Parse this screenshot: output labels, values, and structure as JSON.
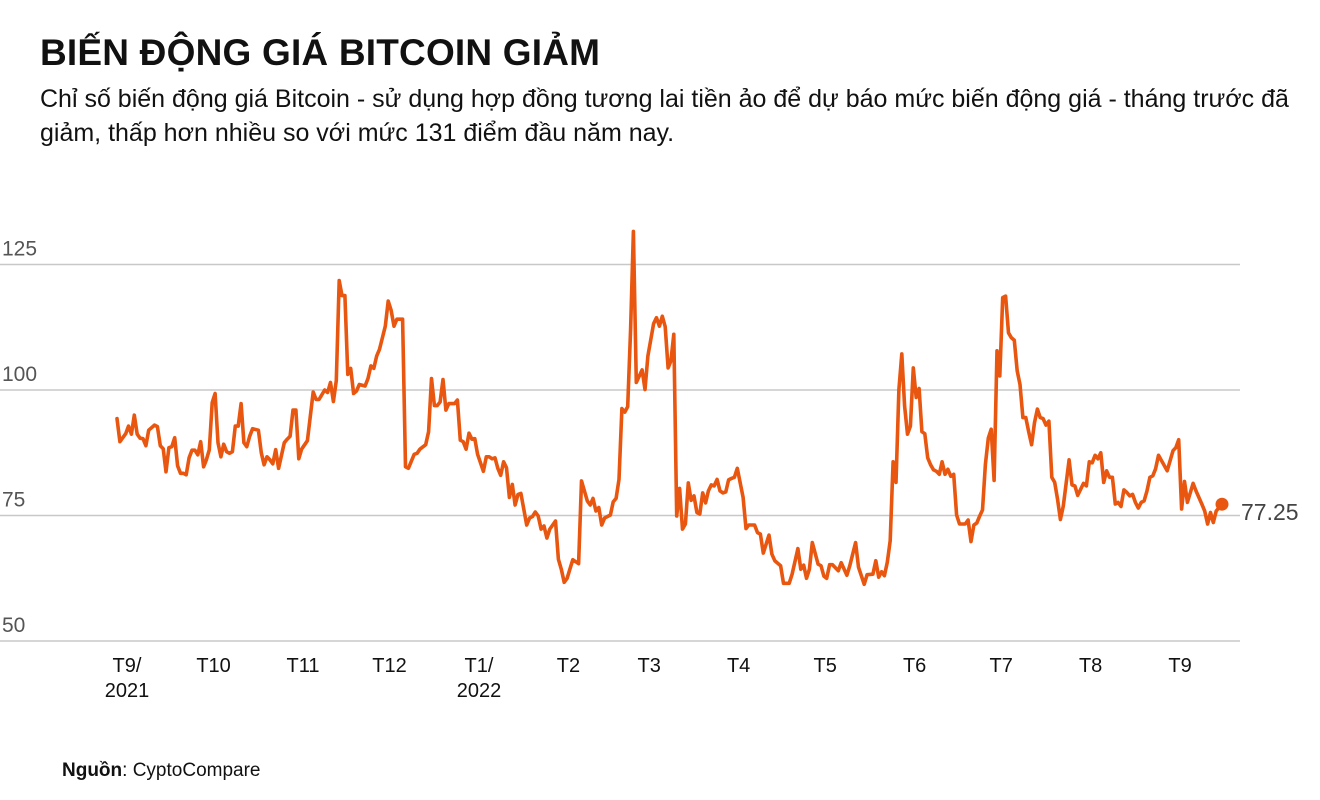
{
  "header": {
    "title": "BIẾN ĐỘNG GIÁ BITCOIN GIẢM",
    "subtitle": "Chỉ số biến động giá Bitcoin - sử dụng hợp đồng tương lai tiền ảo để dự báo mức biến động giá - tháng trước đã giảm, thấp hơn nhiều so với mức 131 điểm đầu năm nay."
  },
  "source": {
    "label": "Nguồn",
    "text": ": CyptoCompare"
  },
  "chart_data": {
    "type": "line",
    "title": "",
    "xlabel": "",
    "ylabel": "",
    "ylim": [
      50,
      131
    ],
    "yticks": [
      50,
      75,
      100,
      125
    ],
    "xlim": [
      "2021-09-01",
      "2022-09-19"
    ],
    "grid": "horizontal",
    "line_color": "#e8560f",
    "gridline_color": "#c8c8c8",
    "xticks": [
      {
        "date": "2021-09-01",
        "label": [
          "T9/",
          "2021"
        ]
      },
      {
        "date": "2021-10-01",
        "label": [
          "T10"
        ]
      },
      {
        "date": "2021-11-01",
        "label": [
          "T11"
        ]
      },
      {
        "date": "2021-12-01",
        "label": [
          "T12"
        ]
      },
      {
        "date": "2022-01-01",
        "label": [
          "T1/",
          "2022"
        ]
      },
      {
        "date": "2022-02-01",
        "label": [
          "T2"
        ]
      },
      {
        "date": "2022-03-01",
        "label": [
          "T3"
        ]
      },
      {
        "date": "2022-04-01",
        "label": [
          "T4"
        ]
      },
      {
        "date": "2022-05-01",
        "label": [
          "T5"
        ]
      },
      {
        "date": "2022-06-01",
        "label": [
          "T6"
        ]
      },
      {
        "date": "2022-07-01",
        "label": [
          "T7"
        ]
      },
      {
        "date": "2022-08-01",
        "label": [
          "T8"
        ]
      },
      {
        "date": "2022-09-01",
        "label": [
          "T9"
        ]
      }
    ],
    "end_label": "77.25",
    "series": [
      {
        "x": [
          "2021-09-01",
          "2021-09-02",
          "2021-09-04",
          "2021-09-05",
          "2021-09-06",
          "2021-09-07",
          "2021-09-08",
          "2021-09-09",
          "2021-09-10",
          "2021-09-11",
          "2021-09-12",
          "2021-09-14",
          "2021-09-15",
          "2021-09-16",
          "2021-09-17",
          "2021-09-18",
          "2021-09-19",
          "2021-09-20",
          "2021-09-21",
          "2021-09-22",
          "2021-09-23",
          "2021-09-24",
          "2021-09-25",
          "2021-09-26",
          "2021-09-27",
          "2021-09-28",
          "2021-09-29",
          "2021-09-30",
          "2021-10-01",
          "2021-10-02",
          "2021-10-03",
          "2021-10-04",
          "2021-10-05",
          "2021-10-06",
          "2021-10-07",
          "2021-10-08",
          "2021-10-09",
          "2021-10-10",
          "2021-10-11",
          "2021-10-12",
          "2021-10-13",
          "2021-10-14",
          "2021-10-15",
          "2021-10-16",
          "2021-10-17",
          "2021-10-18",
          "2021-10-20",
          "2021-10-21",
          "2021-10-22",
          "2021-10-23",
          "2021-10-24",
          "2021-10-25",
          "2021-10-26",
          "2021-10-27",
          "2021-10-28",
          "2021-10-29",
          "2021-10-30",
          "2021-10-31",
          "2021-11-01",
          "2021-11-02",
          "2021-11-03",
          "2021-11-04",
          "2021-11-06",
          "2021-11-08",
          "2021-11-09",
          "2021-11-10",
          "2021-11-12",
          "2021-11-13",
          "2021-11-14",
          "2021-11-15",
          "2021-11-16",
          "2021-11-17",
          "2021-11-18",
          "2021-11-19",
          "2021-11-20",
          "2021-11-21",
          "2021-11-22",
          "2021-11-23",
          "2021-11-24",
          "2021-11-26",
          "2021-11-27",
          "2021-11-28",
          "2021-11-29",
          "2021-11-30",
          "2021-12-01",
          "2021-12-03",
          "2021-12-04",
          "2021-12-05",
          "2021-12-06",
          "2021-12-07",
          "2021-12-09",
          "2021-12-10",
          "2021-12-11",
          "2021-12-13",
          "2021-12-14",
          "2021-12-15",
          "2021-12-17",
          "2021-12-18",
          "2021-12-19",
          "2021-12-20",
          "2021-12-21",
          "2021-12-22",
          "2021-12-23",
          "2021-12-24",
          "2021-12-25",
          "2021-12-27",
          "2021-12-28",
          "2021-12-29",
          "2021-12-30",
          "2021-12-31",
          "2022-01-01",
          "2022-01-02",
          "2022-01-03",
          "2022-01-04",
          "2022-01-06",
          "2022-01-07",
          "2022-01-08",
          "2022-01-09",
          "2022-01-10",
          "2022-01-11",
          "2022-01-12",
          "2022-01-13",
          "2022-01-14",
          "2022-01-15",
          "2022-01-16",
          "2022-01-17",
          "2022-01-18",
          "2022-01-19",
          "2022-01-21",
          "2022-01-22",
          "2022-01-23",
          "2022-01-24",
          "2022-01-25",
          "2022-01-26",
          "2022-01-27",
          "2022-01-28",
          "2022-01-29",
          "2022-01-31",
          "2022-02-01",
          "2022-02-02",
          "2022-02-03",
          "2022-02-04",
          "2022-02-06",
          "2022-02-08",
          "2022-02-09",
          "2022-02-11",
          "2022-02-12",
          "2022-02-13",
          "2022-02-14",
          "2022-02-15",
          "2022-02-16",
          "2022-02-17",
          "2022-02-19",
          "2022-02-20",
          "2022-02-21",
          "2022-02-22",
          "2022-02-23",
          "2022-02-24",
          "2022-02-25",
          "2022-02-26",
          "2022-02-27",
          "2022-02-28",
          "2022-03-02",
          "2022-03-03",
          "2022-03-04",
          "2022-03-06",
          "2022-03-07",
          "2022-03-08",
          "2022-03-09",
          "2022-03-10",
          "2022-03-11",
          "2022-03-12",
          "2022-03-13",
          "2022-03-14",
          "2022-03-15",
          "2022-03-16",
          "2022-03-17",
          "2022-03-18",
          "2022-03-19",
          "2022-03-20",
          "2022-03-21",
          "2022-03-22",
          "2022-03-23",
          "2022-03-24",
          "2022-03-25",
          "2022-03-26",
          "2022-03-27",
          "2022-03-28",
          "2022-03-29",
          "2022-03-30",
          "2022-03-31",
          "2022-04-01",
          "2022-04-02",
          "2022-04-03",
          "2022-04-04",
          "2022-04-06",
          "2022-04-07",
          "2022-04-08",
          "2022-04-10",
          "2022-04-11",
          "2022-04-12",
          "2022-04-13",
          "2022-04-15",
          "2022-04-16",
          "2022-04-17",
          "2022-04-19",
          "2022-04-20",
          "2022-04-22",
          "2022-04-23",
          "2022-04-25",
          "2022-04-26",
          "2022-04-27",
          "2022-04-28",
          "2022-04-29",
          "2022-04-30",
          "2022-05-02",
          "2022-05-03",
          "2022-05-04",
          "2022-05-05",
          "2022-05-06",
          "2022-05-07",
          "2022-05-09",
          "2022-05-10",
          "2022-05-12",
          "2022-05-13",
          "2022-05-15",
          "2022-05-16",
          "2022-05-18",
          "2022-05-19",
          "2022-05-21",
          "2022-05-22",
          "2022-05-23",
          "2022-05-24",
          "2022-05-25",
          "2022-05-26",
          "2022-05-27",
          "2022-05-28",
          "2022-05-29",
          "2022-05-30",
          "2022-05-31",
          "2022-06-01",
          "2022-06-02",
          "2022-06-03",
          "2022-06-04",
          "2022-06-05",
          "2022-06-06",
          "2022-06-07",
          "2022-06-08",
          "2022-06-09",
          "2022-06-10",
          "2022-06-11",
          "2022-06-12",
          "2022-06-13",
          "2022-06-14",
          "2022-06-15",
          "2022-06-16",
          "2022-06-17",
          "2022-06-18",
          "2022-06-19",
          "2022-06-20",
          "2022-06-22",
          "2022-06-23",
          "2022-06-24",
          "2022-06-25",
          "2022-06-26",
          "2022-06-27",
          "2022-06-28",
          "2022-06-29",
          "2022-06-30",
          "2022-07-01",
          "2022-07-02",
          "2022-07-03",
          "2022-07-04",
          "2022-07-05",
          "2022-07-06",
          "2022-07-07",
          "2022-07-08",
          "2022-07-09",
          "2022-07-10",
          "2022-07-11",
          "2022-07-12",
          "2022-07-13",
          "2022-07-14",
          "2022-07-15",
          "2022-07-16",
          "2022-07-17",
          "2022-07-18",
          "2022-07-19",
          "2022-07-20",
          "2022-07-21",
          "2022-07-22",
          "2022-07-23",
          "2022-07-24",
          "2022-07-25",
          "2022-07-26",
          "2022-07-28",
          "2022-07-29",
          "2022-07-30",
          "2022-07-31",
          "2022-08-02",
          "2022-08-03",
          "2022-08-04",
          "2022-08-05",
          "2022-08-06",
          "2022-08-07",
          "2022-08-08",
          "2022-08-09",
          "2022-08-10",
          "2022-08-11",
          "2022-08-12",
          "2022-08-13",
          "2022-08-14",
          "2022-08-15",
          "2022-08-16",
          "2022-08-17",
          "2022-08-18",
          "2022-08-19",
          "2022-08-20",
          "2022-08-21",
          "2022-08-22",
          "2022-08-23",
          "2022-08-24",
          "2022-08-25",
          "2022-08-26",
          "2022-08-27",
          "2022-08-28",
          "2022-08-31",
          "2022-09-02",
          "2022-09-03",
          "2022-09-04",
          "2022-09-05",
          "2022-09-06",
          "2022-09-07",
          "2022-09-09",
          "2022-09-10",
          "2022-09-12",
          "2022-09-13",
          "2022-09-14",
          "2022-09-15",
          "2022-09-16",
          "2022-09-17",
          "2022-09-19"
        ],
        "y": [
          94.3,
          89.7,
          91.3,
          92.8,
          91.2,
          95,
          91.2,
          90.4,
          90.3,
          88.9,
          92,
          93,
          92.7,
          88.9,
          88.3,
          83.7,
          88.5,
          88.7,
          90.5,
          84.9,
          83.4,
          83.4,
          83.1,
          86.5,
          88,
          88,
          87.1,
          89.7,
          84.7,
          86.1,
          88.1,
          97.5,
          99.3,
          89.5,
          86.7,
          89.2,
          87.7,
          87.4,
          87.7,
          92.8,
          92.8,
          97.3,
          89.5,
          88.7,
          90.8,
          92.3,
          92,
          87.5,
          85.1,
          86.7,
          86.1,
          85.3,
          88.1,
          84.4,
          87,
          89.5,
          90.2,
          90.8,
          96,
          96,
          86.3,
          88.2,
          89.9,
          99.6,
          98.1,
          98.1,
          100,
          99.5,
          101.5,
          97.7,
          101.9,
          121.8,
          118.8,
          118.8,
          103.1,
          104.3,
          99.3,
          99.8,
          101.1,
          100.8,
          102.3,
          104.8,
          104.3,
          106.8,
          108.1,
          112.7,
          117.7,
          115.9,
          112.7,
          114.1,
          114.1,
          84.7,
          84.4,
          87.2,
          87.4,
          88.2,
          89.1,
          91.7,
          102.3,
          96.9,
          96.9,
          97.6,
          102.1,
          96,
          97.3,
          97.3,
          98,
          90,
          89.7,
          88.2,
          91.4,
          90.2,
          90.3,
          87.2,
          83.8,
          86.7,
          86.7,
          86.3,
          86.5,
          84.4,
          83,
          85.7,
          84.5,
          78.6,
          81.2,
          77.1,
          79.2,
          79.4,
          73.1,
          74.5,
          74.8,
          75.7,
          74.9,
          72.3,
          72.9,
          70.5,
          72.3,
          73.9,
          66.3,
          64.3,
          61.7,
          62.5,
          66.2,
          65.4,
          81.9,
          77.9,
          77.1,
          78.4,
          75.9,
          76.6,
          73.1,
          74.5,
          75.1,
          77.7,
          78.4,
          82.2,
          96.3,
          95.6,
          96.7,
          112.1,
          131.6,
          101.5,
          104,
          100.1,
          106.8,
          113.2,
          114.4,
          112.7,
          114.7,
          112.6,
          104.4,
          105.8,
          111.1,
          74.9,
          80.4,
          72.3,
          73.3,
          81.5,
          78,
          78.9,
          75.6,
          75.3,
          79.5,
          77.5,
          79.9,
          81.1,
          80.9,
          82.2,
          79.9,
          79.5,
          79.7,
          82.1,
          82.4,
          82.6,
          84.4,
          78.6,
          72.4,
          73.1,
          73.1,
          71.6,
          71.3,
          67.5,
          71.1,
          67.3,
          66,
          65,
          61.5,
          61.5,
          63.3,
          68.4,
          64.3,
          65.1,
          62.5,
          64.3,
          69.6,
          65.3,
          65,
          62.9,
          62.5,
          65.2,
          65.2,
          64,
          65.6,
          63.1,
          65,
          69.6,
          64.7,
          61.3,
          63.2,
          63.3,
          66,
          62.7,
          63.8,
          63,
          65.7,
          70,
          85.7,
          81.6,
          100.1,
          107.2,
          96.8,
          91.2,
          92.8,
          104.4,
          98.5,
          100.3,
          91.7,
          91.3,
          86.5,
          85.1,
          84.1,
          83.8,
          83.2,
          85.7,
          83.2,
          84.2,
          82.8,
          83.2,
          75.1,
          73.3,
          73.3,
          74.1,
          69.8,
          73.1,
          73.5,
          74.9,
          76.1,
          85.2,
          90.4,
          92.2,
          82,
          107.8,
          102.8,
          118.4,
          118.7,
          111.4,
          110.4,
          109.9,
          103.8,
          101.1,
          94.5,
          94.5,
          91.7,
          89.1,
          93.5,
          96.2,
          94.5,
          94.3,
          93,
          93.8,
          82.6,
          81.6,
          78.3,
          74.2,
          76.9,
          86.1,
          81.1,
          80.9,
          79,
          81.4,
          80.9,
          85.7,
          85.5,
          87,
          86.3,
          87.5,
          81.6,
          83.9,
          82.6,
          82.6,
          77.3,
          77.6,
          76.8,
          80.1,
          79.6,
          78.9,
          79.2,
          77.6,
          76.5,
          77.6,
          77.9,
          79.9,
          82.6,
          82.9,
          84.3,
          87,
          83.9,
          87.9,
          88.5,
          90.1,
          76.3,
          81.8,
          77.6,
          81.4,
          79.9,
          77.3,
          75.9,
          73.3,
          75.6,
          73.6,
          75.9,
          77.25
        ]
      }
    ]
  }
}
